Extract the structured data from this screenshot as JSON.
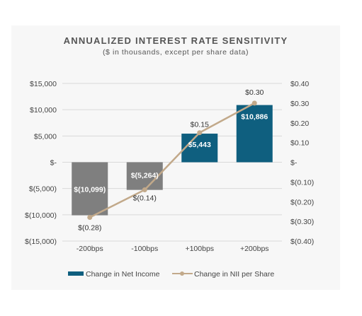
{
  "chart_data": {
    "type": "bar",
    "title": "ANNUALIZED INTEREST RATE SENSITIVITY",
    "subtitle": "($ in thousands, except per share data)",
    "categories": [
      "-200bps",
      "-100bps",
      "+100bps",
      "+200bps"
    ],
    "series": [
      {
        "name": "Change in Net Income",
        "type": "bar",
        "axis": "left",
        "values": [
          -10099,
          -5264,
          5443,
          10886
        ],
        "labels": [
          "$(10,099)",
          "$(5,264)",
          "$5,443",
          "$10,886"
        ],
        "colors": [
          "#7f7f7f",
          "#7f7f7f",
          "#0f5f7f",
          "#0f5f7f"
        ]
      },
      {
        "name": "Change in NII per Share",
        "type": "line",
        "axis": "right",
        "values": [
          -0.28,
          -0.14,
          0.15,
          0.3
        ],
        "labels": [
          "$(0.28)",
          "$(0.14)",
          "$0.15",
          "$0.30"
        ],
        "color": "#c2a98a"
      }
    ],
    "left_axis": {
      "ylim": [
        -15000,
        15000
      ],
      "ticks": [
        15000,
        10000,
        5000,
        0,
        -5000,
        -10000,
        -15000
      ],
      "tick_labels": [
        "$15,000",
        "$10,000",
        "$5,000",
        "$-",
        "$(5,000)",
        "$(10,000)",
        "$(15,000)"
      ]
    },
    "right_axis": {
      "ylim": [
        -0.4,
        0.4
      ],
      "ticks": [
        0.4,
        0.3,
        0.2,
        0.1,
        0,
        -0.1,
        -0.2,
        -0.3,
        -0.4
      ],
      "tick_labels": [
        "$0.40",
        "$0.30",
        "$0.20",
        "$0.10",
        "$-",
        "$(0.10)",
        "$(0.20)",
        "$(0.30)",
        "$(0.40)"
      ]
    },
    "grid": true,
    "legend_position": "bottom"
  },
  "colors": {
    "positive_bar": "#0f5f7f",
    "negative_bar": "#7f7f7f",
    "line": "#c2a98a",
    "grid": "#d9d9d9"
  }
}
